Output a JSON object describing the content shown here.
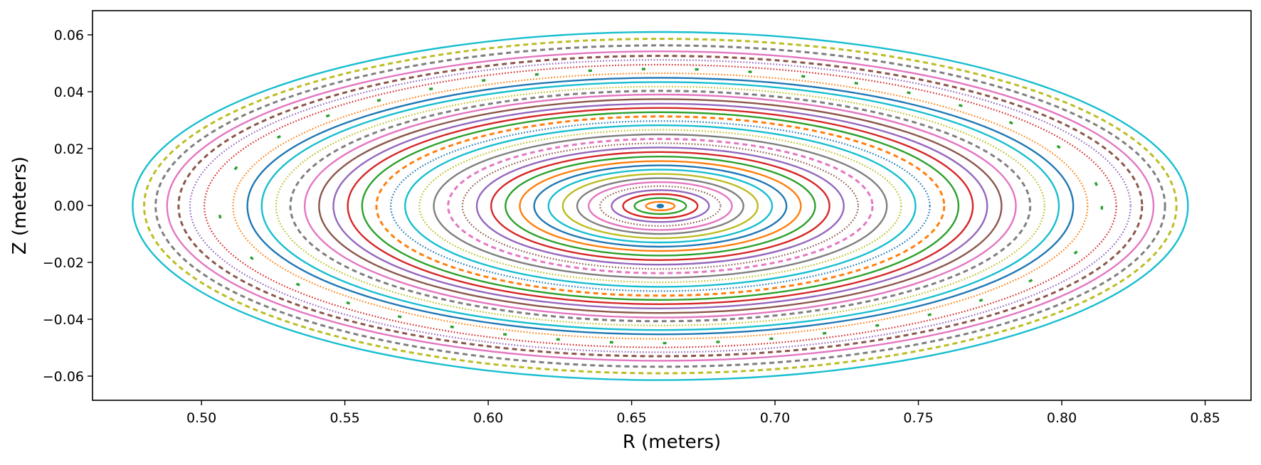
{
  "chart_data": {
    "type": "scatter",
    "title": "",
    "xlabel": "R (meters)",
    "ylabel": "Z (meters)",
    "xlim": [
      0.462,
      0.866
    ],
    "ylim": [
      -0.0685,
      0.0685
    ],
    "grid": false,
    "legend": "none",
    "x_ticks": [
      0.5,
      0.55,
      0.6,
      0.65,
      0.7,
      0.75,
      0.8,
      0.85
    ],
    "x_tick_labels": [
      "0.50",
      "0.55",
      "0.60",
      "0.65",
      "0.70",
      "0.75",
      "0.80",
      "0.85"
    ],
    "y_ticks": [
      -0.06,
      -0.04,
      -0.02,
      0.0,
      0.02,
      0.04,
      0.06
    ],
    "y_tick_labels": [
      "−0.06",
      "−0.04",
      "−0.02",
      "0.00",
      "0.02",
      "0.04",
      "0.06"
    ],
    "center": {
      "R": 0.66,
      "Z": -0.0002
    },
    "series": [
      {
        "semi_axis_r": 0.001,
        "semi_axis_z": 0.0005,
        "color": "#1f77b4",
        "style": "dot"
      },
      {
        "semi_axis_r": 0.005,
        "semi_axis_z": 0.0015,
        "color": "#ff7f0e",
        "style": "solid"
      },
      {
        "semi_axis_r": 0.009,
        "semi_axis_z": 0.0028,
        "color": "#2ca02c",
        "style": "solid"
      },
      {
        "semi_axis_r": 0.013,
        "semi_axis_z": 0.0042,
        "color": "#d62728",
        "style": "solid"
      },
      {
        "semi_axis_r": 0.017,
        "semi_axis_z": 0.0056,
        "color": "#9467bd",
        "style": "solid"
      },
      {
        "semi_axis_r": 0.021,
        "semi_axis_z": 0.007,
        "color": "#8c564b",
        "style": "dotted"
      },
      {
        "semi_axis_r": 0.025,
        "semi_axis_z": 0.0084,
        "color": "#e377c2",
        "style": "solid"
      },
      {
        "semi_axis_r": 0.029,
        "semi_axis_z": 0.0098,
        "color": "#7f7f7f",
        "style": "solid"
      },
      {
        "semi_axis_r": 0.034,
        "semi_axis_z": 0.0113,
        "color": "#bcbd22",
        "style": "solid"
      },
      {
        "semi_axis_r": 0.039,
        "semi_axis_z": 0.0128,
        "color": "#17becf",
        "style": "solid"
      },
      {
        "semi_axis_r": 0.044,
        "semi_axis_z": 0.0143,
        "color": "#1f77b4",
        "style": "solid"
      },
      {
        "semi_axis_r": 0.049,
        "semi_axis_z": 0.0158,
        "color": "#ff7f0e",
        "style": "solid"
      },
      {
        "semi_axis_r": 0.054,
        "semi_axis_z": 0.0174,
        "color": "#2ca02c",
        "style": "solid"
      },
      {
        "semi_axis_r": 0.059,
        "semi_axis_z": 0.019,
        "color": "#d62728",
        "style": "solid"
      },
      {
        "semi_axis_r": 0.064,
        "semi_axis_z": 0.0206,
        "color": "#9467bd",
        "style": "solid"
      },
      {
        "semi_axis_r": 0.069,
        "semi_axis_z": 0.0221,
        "color": "#8c564b",
        "style": "dotted"
      },
      {
        "semi_axis_r": 0.074,
        "semi_axis_z": 0.0236,
        "color": "#e377c2",
        "style": "dashed"
      },
      {
        "semi_axis_r": 0.079,
        "semi_axis_z": 0.0252,
        "color": "#7f7f7f",
        "style": "solid"
      },
      {
        "semi_axis_r": 0.084,
        "semi_axis_z": 0.0268,
        "color": "#bcbd22",
        "style": "dotted"
      },
      {
        "semi_axis_r": 0.089,
        "semi_axis_z": 0.0284,
        "color": "#17becf",
        "style": "solid"
      },
      {
        "semi_axis_r": 0.094,
        "semi_axis_z": 0.0299,
        "color": "#1f77b4",
        "style": "dotted"
      },
      {
        "semi_axis_r": 0.099,
        "semi_axis_z": 0.0315,
        "color": "#ff7f0e",
        "style": "dashed"
      },
      {
        "semi_axis_r": 0.104,
        "semi_axis_z": 0.033,
        "color": "#2ca02c",
        "style": "solid"
      },
      {
        "semi_axis_r": 0.109,
        "semi_axis_z": 0.0345,
        "color": "#d62728",
        "style": "solid"
      },
      {
        "semi_axis_r": 0.114,
        "semi_axis_z": 0.036,
        "color": "#9467bd",
        "style": "solid"
      },
      {
        "semi_axis_r": 0.119,
        "semi_axis_z": 0.0376,
        "color": "#8c564b",
        "style": "solid"
      },
      {
        "semi_axis_r": 0.124,
        "semi_axis_z": 0.0392,
        "color": "#e377c2",
        "style": "solid"
      },
      {
        "semi_axis_r": 0.129,
        "semi_axis_z": 0.0405,
        "color": "#7f7f7f",
        "style": "dashed"
      },
      {
        "semi_axis_r": 0.134,
        "semi_axis_z": 0.042,
        "color": "#bcbd22",
        "style": "dotted"
      },
      {
        "semi_axis_r": 0.139,
        "semi_axis_z": 0.0436,
        "color": "#17becf",
        "style": "solid"
      },
      {
        "semi_axis_r": 0.144,
        "semi_axis_z": 0.0451,
        "color": "#1f77b4",
        "style": "solid"
      },
      {
        "semi_axis_r": 0.149,
        "semi_axis_z": 0.0467,
        "color": "#ff7f0e",
        "style": "dotted"
      },
      {
        "semi_axis_r": 0.154,
        "semi_axis_z": 0.0482,
        "color": "#2ca02c",
        "style": "islands"
      },
      {
        "semi_axis_r": 0.159,
        "semi_axis_z": 0.0497,
        "color": "#d62728",
        "style": "dotted"
      },
      {
        "semi_axis_r": 0.164,
        "semi_axis_z": 0.0514,
        "color": "#9467bd",
        "style": "dotted"
      },
      {
        "semi_axis_r": 0.168,
        "semi_axis_z": 0.0528,
        "color": "#8c564b",
        "style": "dashed"
      },
      {
        "semi_axis_r": 0.172,
        "semi_axis_z": 0.0544,
        "color": "#e377c2",
        "style": "solid"
      },
      {
        "semi_axis_r": 0.176,
        "semi_axis_z": 0.0565,
        "color": "#7f7f7f",
        "style": "dashed"
      },
      {
        "semi_axis_r": 0.18,
        "semi_axis_z": 0.0588,
        "color": "#bcbd22",
        "style": "dashed"
      },
      {
        "semi_axis_r": 0.184,
        "semi_axis_z": 0.0612,
        "color": "#17becf",
        "style": "solid"
      }
    ]
  }
}
